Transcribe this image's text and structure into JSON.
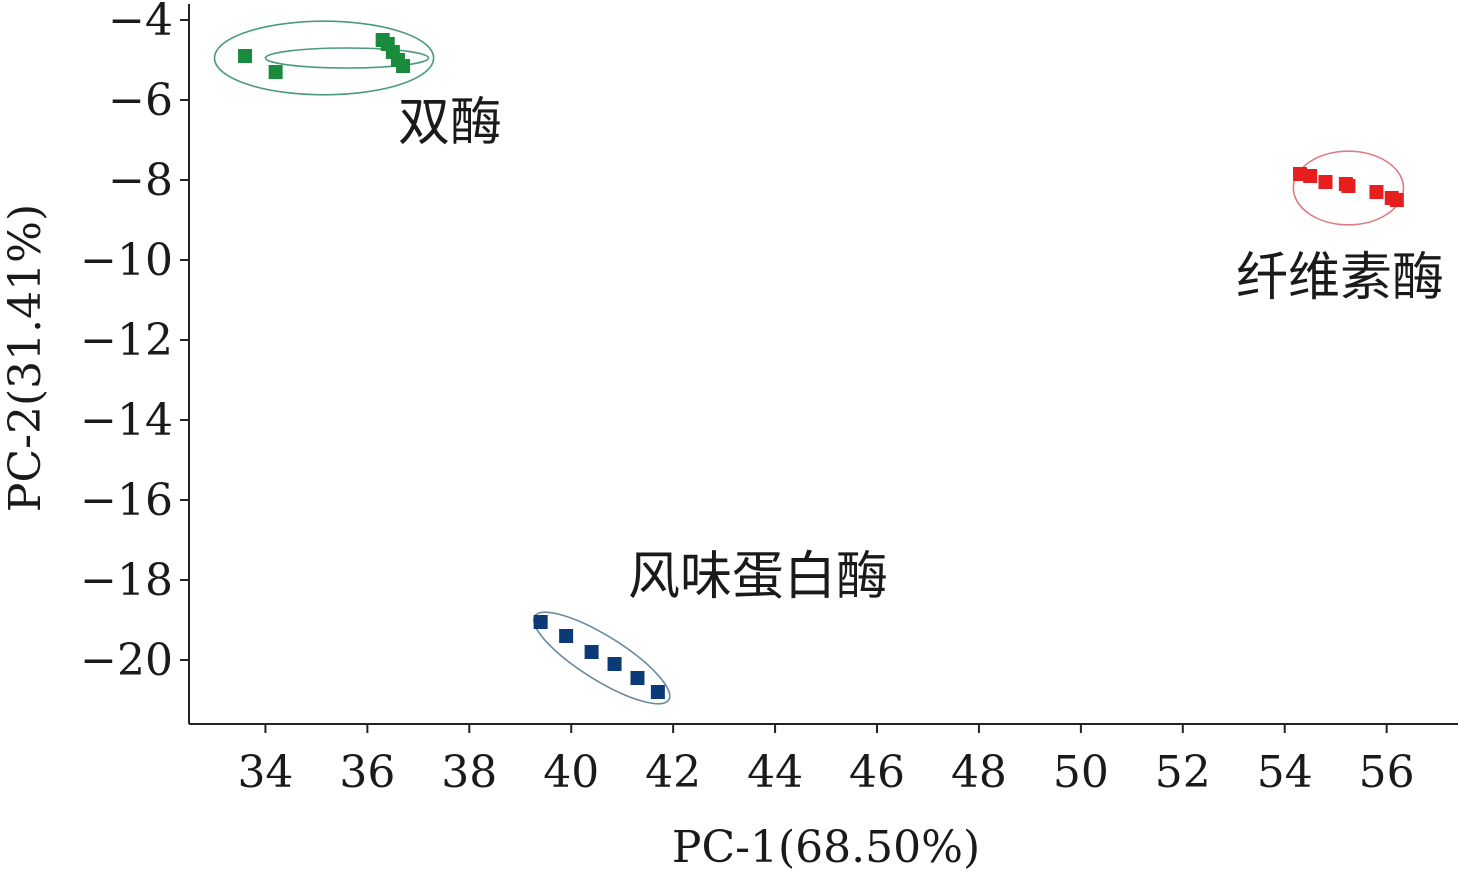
{
  "chart_data": {
    "type": "scatter",
    "xlabel": "PC-1(68.50%)",
    "ylabel": "PC-2(31.41%)",
    "xlim": [
      32.5,
      57.4
    ],
    "ylim": [
      -21.6,
      -3.6
    ],
    "x_ticks": [
      34,
      36,
      38,
      40,
      42,
      44,
      46,
      48,
      50,
      52,
      54,
      56
    ],
    "x_tick_labels": [
      "34",
      "36",
      "38",
      "40",
      "42",
      "44",
      "46",
      "48",
      "50",
      "52",
      "54",
      "56"
    ],
    "y_ticks": [
      -4,
      -6,
      -8,
      -10,
      -12,
      -14,
      -16,
      -18,
      -20
    ],
    "y_tick_labels": [
      "−4",
      "−6",
      "−8",
      "−10",
      "−12",
      "−14",
      "−16",
      "−18",
      "−20"
    ],
    "grid": false,
    "series": [
      {
        "name": "双酶",
        "color": "#1a8a3c",
        "ellipse_color": "#4a9a80",
        "points": [
          [
            33.6,
            -4.9
          ],
          [
            34.2,
            -5.3
          ],
          [
            36.3,
            -4.5
          ],
          [
            36.4,
            -4.6
          ],
          [
            36.5,
            -4.8
          ],
          [
            36.6,
            -5.0
          ],
          [
            36.7,
            -5.15
          ]
        ],
        "ellipse": {
          "cx": 35.15,
          "cy": -4.95,
          "rx": 2.15,
          "ry": 0.92,
          "angle": 0
        },
        "inner_ellipse": {
          "cx": 35.6,
          "cy": -4.95,
          "rx": 1.6,
          "ry": 0.25,
          "angle": 0
        }
      },
      {
        "name": "纤维素酶",
        "color": "#e61e1e",
        "ellipse_color": "#e07a80",
        "points": [
          [
            54.3,
            -7.85
          ],
          [
            54.5,
            -7.9
          ],
          [
            54.8,
            -8.05
          ],
          [
            55.2,
            -8.1
          ],
          [
            55.25,
            -8.15
          ],
          [
            55.8,
            -8.3
          ],
          [
            56.1,
            -8.45
          ],
          [
            56.2,
            -8.5
          ]
        ],
        "ellipse": {
          "cx": 55.25,
          "cy": -8.2,
          "rx": 1.08,
          "ry": 0.92,
          "angle": 0
        }
      },
      {
        "name": "风味蛋白酶",
        "color": "#0c3a78",
        "ellipse_color": "#6a8aa0",
        "points": [
          [
            39.4,
            -19.05
          ],
          [
            39.9,
            -19.4
          ],
          [
            40.4,
            -19.8
          ],
          [
            40.85,
            -20.1
          ],
          [
            41.3,
            -20.45
          ],
          [
            41.7,
            -20.8
          ]
        ],
        "ellipse": {
          "cx": 40.6,
          "cy": -19.95,
          "rx": 1.55,
          "ry": 0.55,
          "angle": 32
        }
      }
    ]
  },
  "labels": {
    "group1": "双酶",
    "group2": "纤维素酶",
    "group3": "风味蛋白酶"
  }
}
